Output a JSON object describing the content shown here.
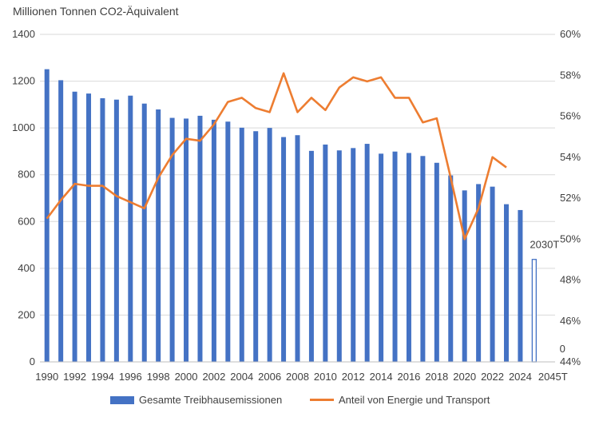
{
  "chart_data": {
    "type": "bar+line",
    "title": "Millionen Tonnen CO2-Äquivalent",
    "categories": [
      "1990",
      "1991",
      "1992",
      "1993",
      "1994",
      "1995",
      "1996",
      "1997",
      "1998",
      "1999",
      "2000",
      "2001",
      "2002",
      "2003",
      "2004",
      "2005",
      "2006",
      "2007",
      "2008",
      "2009",
      "2010",
      "2011",
      "2012",
      "2013",
      "2014",
      "2015",
      "2016",
      "2017",
      "2018",
      "2019",
      "2020",
      "2021",
      "2022",
      "2023",
      "2024",
      "2030T",
      "2045T"
    ],
    "x_tick_labels": [
      "1990",
      "1992",
      "1994",
      "1996",
      "1998",
      "2000",
      "2002",
      "2004",
      "2006",
      "2008",
      "2010",
      "2012",
      "2014",
      "2016",
      "2018",
      "2020",
      "2022",
      "2024",
      "2045T"
    ],
    "y_left": {
      "min": 0,
      "max": 1400,
      "ticks": [
        "0",
        "200",
        "400",
        "600",
        "800",
        "1000",
        "1200",
        "1400"
      ]
    },
    "y_right": {
      "min": 0.44,
      "max": 0.6,
      "ticks": [
        "44%",
        "46%",
        "48%",
        "50%",
        "52%",
        "54%",
        "56%",
        "58%",
        "60%"
      ]
    },
    "series": [
      {
        "name": "Gesamte Treibhausemissionen",
        "kind": "bar",
        "axis": "left",
        "color": "#4472C4",
        "values": [
          1251,
          1204,
          1155,
          1147,
          1127,
          1121,
          1138,
          1104,
          1079,
          1043,
          1040,
          1052,
          1035,
          1027,
          1001,
          986,
          1000,
          961,
          969,
          902,
          929,
          904,
          914,
          932,
          890,
          899,
          893,
          880,
          851,
          797,
          733,
          760,
          749,
          674,
          649,
          438,
          0
        ]
      },
      {
        "name": "Anteil von Energie und Transport",
        "kind": "line",
        "axis": "right",
        "color": "#ED7D31",
        "values": [
          0.51,
          0.519,
          0.527,
          0.526,
          0.526,
          0.521,
          0.518,
          0.515,
          0.53,
          0.541,
          0.549,
          0.548,
          0.556,
          0.567,
          0.569,
          0.564,
          0.562,
          0.581,
          0.562,
          0.569,
          0.563,
          0.574,
          0.579,
          0.577,
          0.579,
          0.569,
          0.569,
          0.557,
          0.559,
          0.53,
          0.5,
          0.515,
          0.54,
          0.535,
          null,
          null,
          null
        ]
      }
    ],
    "hollow_categories": [
      "2030T",
      "2045T"
    ],
    "annotations": [
      {
        "category": "2030T",
        "text": "2030T"
      },
      {
        "category": "2045T",
        "text": "0"
      }
    ],
    "legend_position": "bottom",
    "grid": true
  }
}
